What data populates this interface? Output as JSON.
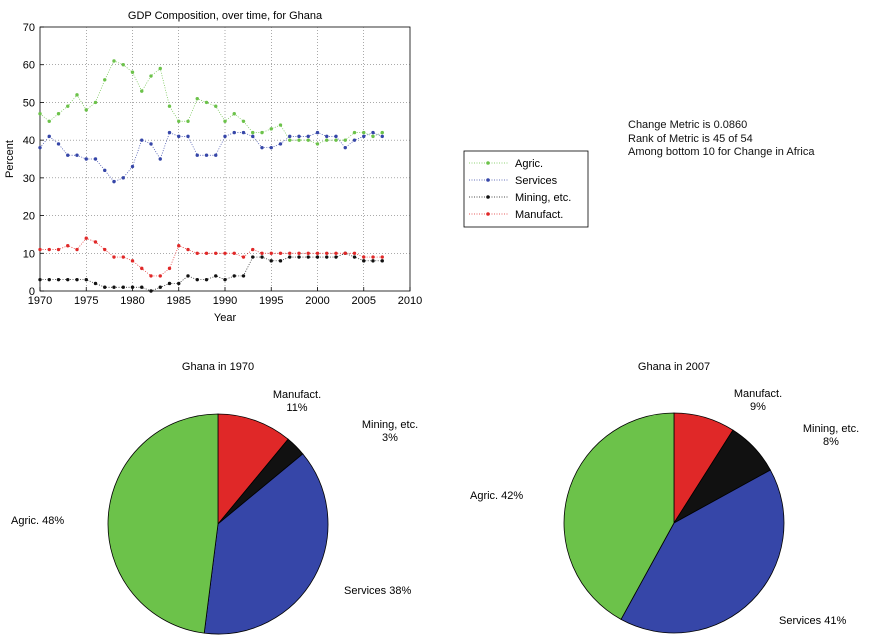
{
  "info": {
    "change_metric": "Change Metric is 0.0860",
    "rank": "Rank of Metric is 45  of 54",
    "among": "Among bottom 10 for Change in Africa"
  },
  "colors": {
    "agric": "#6cc24a",
    "services": "#3646a8",
    "mining": "#111111",
    "manufact": "#e02828"
  },
  "chart_data": [
    {
      "type": "line",
      "title": "GDP Composition, over time, for Ghana",
      "xlabel": "Year",
      "ylabel": "Percent",
      "xlim": [
        1970,
        2010
      ],
      "ylim": [
        0,
        70
      ],
      "xticks": [
        1970,
        1975,
        1980,
        1985,
        1990,
        1995,
        2000,
        2005,
        2010
      ],
      "yticks": [
        0,
        10,
        20,
        30,
        40,
        50,
        60,
        70
      ],
      "grid": true,
      "legend_position": "right of plot",
      "x": [
        1970,
        1971,
        1972,
        1973,
        1974,
        1975,
        1976,
        1977,
        1978,
        1979,
        1980,
        1981,
        1982,
        1983,
        1984,
        1985,
        1986,
        1987,
        1988,
        1989,
        1990,
        1991,
        1992,
        1993,
        1994,
        1995,
        1996,
        1997,
        1998,
        1999,
        2000,
        2001,
        2002,
        2003,
        2004,
        2005,
        2006,
        2007
      ],
      "series": [
        {
          "name": "Agric.",
          "color_key": "agric",
          "values": [
            47,
            45,
            47,
            49,
            52,
            48,
            50,
            56,
            61,
            60,
            58,
            53,
            57,
            59,
            49,
            45,
            45,
            51,
            50,
            49,
            45,
            47,
            45,
            42,
            42,
            43,
            44,
            40,
            40,
            40,
            39,
            40,
            40,
            40,
            42,
            42,
            41,
            42
          ]
        },
        {
          "name": "Services",
          "color_key": "services",
          "values": [
            38,
            41,
            39,
            36,
            36,
            35,
            35,
            32,
            29,
            30,
            33,
            40,
            39,
            35,
            42,
            41,
            41,
            36,
            36,
            36,
            41,
            42,
            42,
            41,
            38,
            38,
            39,
            41,
            41,
            41,
            42,
            41,
            41,
            38,
            40,
            41,
            42,
            41
          ]
        },
        {
          "name": "Mining, etc.",
          "color_key": "mining",
          "values": [
            3,
            3,
            3,
            3,
            3,
            3,
            2,
            1,
            1,
            1,
            1,
            1,
            0,
            1,
            2,
            2,
            4,
            3,
            3,
            4,
            3,
            4,
            4,
            9,
            9,
            8,
            8,
            9,
            9,
            9,
            9,
            9,
            9,
            10,
            9,
            8,
            8,
            8
          ]
        },
        {
          "name": "Manufact.",
          "color_key": "manufact",
          "values": [
            11,
            11,
            11,
            12,
            11,
            14,
            13,
            11,
            9,
            9,
            8,
            6,
            4,
            4,
            6,
            12,
            11,
            10,
            10,
            10,
            10,
            10,
            9,
            11,
            10,
            10,
            10,
            10,
            10,
            10,
            10,
            10,
            10,
            10,
            10,
            9,
            9,
            9
          ]
        }
      ]
    },
    {
      "type": "pie",
      "title": "Ghana   in   1970",
      "slices": [
        {
          "name": "Manufact.",
          "value": 11,
          "label_name": "Manufact.",
          "label_pct": "11%",
          "color_key": "manufact"
        },
        {
          "name": "Mining, etc.",
          "value": 3,
          "label_name": "Mining, etc.",
          "label_pct": "3%",
          "color_key": "mining"
        },
        {
          "name": "Services",
          "value": 38,
          "label_name": "Services",
          "label_pct": "38%",
          "color_key": "services"
        },
        {
          "name": "Agric.",
          "value": 48,
          "label_name": "Agric.",
          "label_pct": "48%",
          "color_key": "agric"
        }
      ]
    },
    {
      "type": "pie",
      "title": "Ghana   in   2007",
      "slices": [
        {
          "name": "Manufact.",
          "value": 9,
          "label_name": "Manufact.",
          "label_pct": "9%",
          "color_key": "manufact"
        },
        {
          "name": "Mining, etc.",
          "value": 8,
          "label_name": "Mining, etc.",
          "label_pct": "8%",
          "color_key": "mining"
        },
        {
          "name": "Services",
          "value": 41,
          "label_name": "Services",
          "label_pct": "41%",
          "color_key": "services"
        },
        {
          "name": "Agric.",
          "value": 42,
          "label_name": "Agric.",
          "label_pct": "42%",
          "color_key": "agric"
        }
      ]
    }
  ]
}
